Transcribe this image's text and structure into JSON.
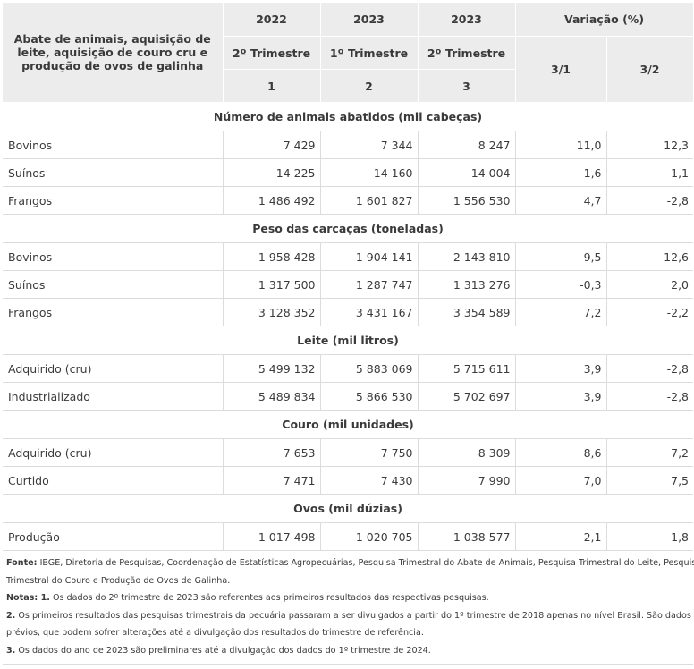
{
  "header": {
    "title": "Abate de animais, aquisição de leite, aquisição de couro cru e produção de ovos de galinha",
    "years": [
      "2022",
      "2023",
      "2023"
    ],
    "variation_label": "Variação (%)",
    "quarters": [
      "2º Trimestre",
      "1º Trimestre",
      "2º Trimestre"
    ],
    "indexes": [
      "1",
      "2",
      "3"
    ],
    "var_cols": [
      "3/1",
      "3/2"
    ]
  },
  "sections": [
    {
      "title": "Número de animais abatidos (mil cabeças)",
      "rows": [
        {
          "label": "Bovinos",
          "v1": "7 429",
          "v2": "7 344",
          "v3": "8 247",
          "var31": "11,0",
          "var32": "12,3"
        },
        {
          "label": "Suínos",
          "v1": "14 225",
          "v2": "14 160",
          "v3": "14 004",
          "var31": "-1,6",
          "var32": "-1,1"
        },
        {
          "label": "Frangos",
          "v1": "1 486 492",
          "v2": "1 601 827",
          "v3": "1 556 530",
          "var31": "4,7",
          "var32": "-2,8"
        }
      ]
    },
    {
      "title": "Peso das carcaças (toneladas)",
      "rows": [
        {
          "label": "Bovinos",
          "v1": "1 958 428",
          "v2": "1 904 141",
          "v3": "2 143 810",
          "var31": "9,5",
          "var32": "12,6"
        },
        {
          "label": "Suínos",
          "v1": "1 317 500",
          "v2": "1 287 747",
          "v3": "1 313 276",
          "var31": "-0,3",
          "var32": "2,0"
        },
        {
          "label": "Frangos",
          "v1": "3 128 352",
          "v2": "3 431 167",
          "v3": "3 354 589",
          "var31": "7,2",
          "var32": "-2,2"
        }
      ]
    },
    {
      "title": "Leite (mil litros)",
      "rows": [
        {
          "label": "Adquirido (cru)",
          "v1": "5 499 132",
          "v2": "5 883 069",
          "v3": "5 715 611",
          "var31": "3,9",
          "var32": "-2,8"
        },
        {
          "label": "Industrializado",
          "v1": "5 489 834",
          "v2": "5 866 530",
          "v3": "5 702 697",
          "var31": "3,9",
          "var32": "-2,8"
        }
      ]
    },
    {
      "title": "Couro (mil unidades)",
      "rows": [
        {
          "label": "Adquirido (cru)",
          "v1": "7 653",
          "v2": "7 750",
          "v3": "8 309",
          "var31": "8,6",
          "var32": "7,2"
        },
        {
          "label": "Curtido",
          "v1": "7 471",
          "v2": "7 430",
          "v3": "7 990",
          "var31": "7,0",
          "var32": "7,5"
        }
      ]
    },
    {
      "title": "Ovos (mil dúzias)",
      "rows": [
        {
          "label": "Produção",
          "v1": "1 017 498",
          "v2": "1 020 705",
          "v3": "1 038 577",
          "var31": "2,1",
          "var32": "1,8"
        }
      ]
    }
  ],
  "notes": {
    "source_label": "Fonte:",
    "source_line1": " IBGE, Diretoria de Pesquisas, Coordenação de Estatísticas Agropecuárias, Pesquisa Trimestral do Abate de Animais, Pesquisa Trimestral do Leite, Pesquisa",
    "source_line2": "Trimestral do Couro e Produção de Ovos de Galinha.",
    "notes_label": "Notas:",
    "note1_num": " 1.",
    "note1_text": " Os dados do 2º trimestre de 2023 são referentes aos primeiros resultados das respectivas pesquisas.",
    "note2_num": "2.",
    "note2_line1": " Os primeiros resultados das pesquisas trimestrais da pecuária passaram a ser divulgados a partir do 1º trimestre de 2018 apenas no nível Brasil.  São dados",
    "note2_line2": "prévios, que podem sofrer alterações até a divulgação dos resultados do trimestre de referência.",
    "note3_num": "3.",
    "note3_text": " Os dados do ano de 2023 são preliminares até a divulgação dos dados do 1º trimestre de 2024."
  }
}
